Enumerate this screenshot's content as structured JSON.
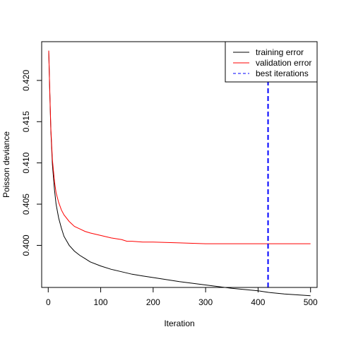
{
  "chart_data": {
    "type": "line",
    "title": "",
    "xlabel": "Iteration",
    "ylabel": "Poisson deviance",
    "xlim": [
      -12.5,
      512.5
    ],
    "ylim": [
      0.3949,
      0.4247
    ],
    "x_ticks": [
      0,
      100,
      200,
      300,
      400,
      500
    ],
    "x_tick_labels": [
      "0",
      "100",
      "200",
      "300",
      "400",
      "500"
    ],
    "y_ticks": [
      0.4,
      0.405,
      0.41,
      0.415,
      0.42
    ],
    "y_tick_labels": [
      "0.400",
      "0.405",
      "0.410",
      "0.415",
      "0.420"
    ],
    "grid": false,
    "legend_position": "top-right",
    "legend": [
      {
        "label": "training error",
        "color": "#000000",
        "style": "solid"
      },
      {
        "label": "validation error",
        "color": "#ff0000",
        "style": "solid"
      },
      {
        "label": "best iterations",
        "color": "#0000ff",
        "style": "dashed"
      }
    ],
    "series": [
      {
        "name": "training error",
        "color": "#000000",
        "x": [
          1,
          3,
          5,
          8,
          12,
          15,
          20,
          25,
          30,
          40,
          50,
          60,
          70,
          80,
          100,
          120,
          140,
          160,
          180,
          200,
          250,
          300,
          350,
          400,
          420,
          450,
          500
        ],
        "y": [
          0.4236,
          0.4185,
          0.4139,
          0.4098,
          0.4067,
          0.405,
          0.4033,
          0.4021,
          0.4011,
          0.4,
          0.3993,
          0.3988,
          0.3984,
          0.398,
          0.3975,
          0.3971,
          0.3968,
          0.3965,
          0.3963,
          0.3961,
          0.3956,
          0.3952,
          0.3948,
          0.3945,
          0.3943,
          0.3941,
          0.3939
        ]
      },
      {
        "name": "validation error",
        "color": "#ff0000",
        "x": [
          1,
          3,
          5,
          8,
          12,
          15,
          20,
          25,
          30,
          40,
          50,
          60,
          70,
          80,
          100,
          120,
          140,
          150,
          160,
          180,
          200,
          250,
          300,
          350,
          400,
          420,
          450,
          500
        ],
        "y": [
          0.4236,
          0.4187,
          0.4142,
          0.4104,
          0.4077,
          0.4064,
          0.4052,
          0.4043,
          0.4037,
          0.4029,
          0.4023,
          0.402,
          0.4017,
          0.4015,
          0.4012,
          0.4009,
          0.4007,
          0.4005,
          0.4005,
          0.4004,
          0.4004,
          0.4003,
          0.4002,
          0.4002,
          0.4002,
          0.4002,
          0.4002,
          0.4002
        ]
      }
    ],
    "best_iteration": 419
  }
}
